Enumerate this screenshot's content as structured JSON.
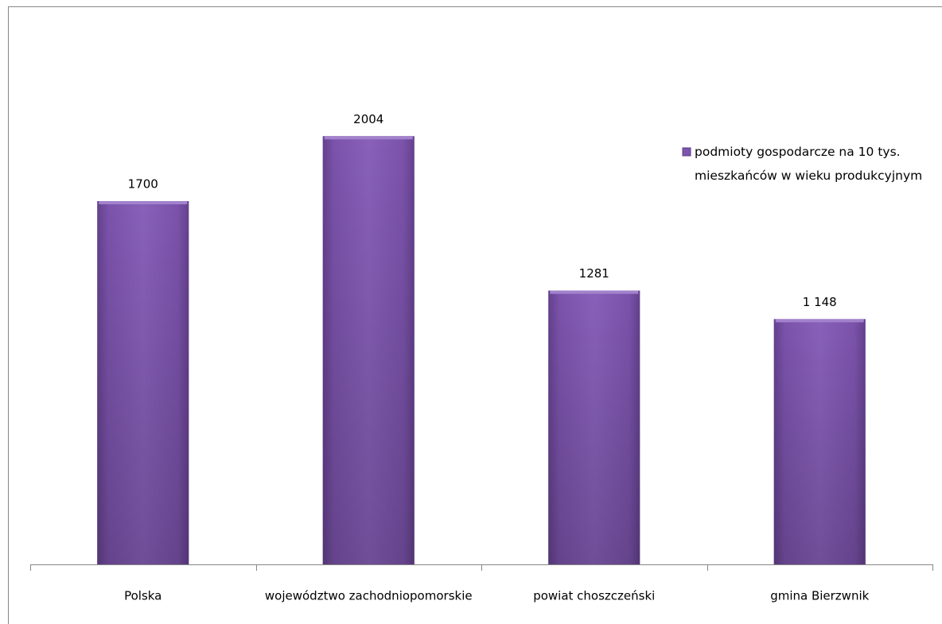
{
  "chart_data": {
    "type": "bar",
    "categories": [
      "Polska",
      "województwo zachodniopomorskie",
      "powiat choszczeński",
      "gmina Bierzwnik"
    ],
    "series": [
      {
        "name": "podmioty gospodarcze na 10 tys. mieszkańców w wieku produkcyjnym",
        "color": "#7d55ad",
        "values": [
          1700,
          2004,
          1281,
          1148
        ],
        "value_labels": [
          "1700",
          "2004",
          "1281",
          "1 148"
        ]
      }
    ],
    "ylim": [
      0,
      2500
    ],
    "legend": "right"
  }
}
